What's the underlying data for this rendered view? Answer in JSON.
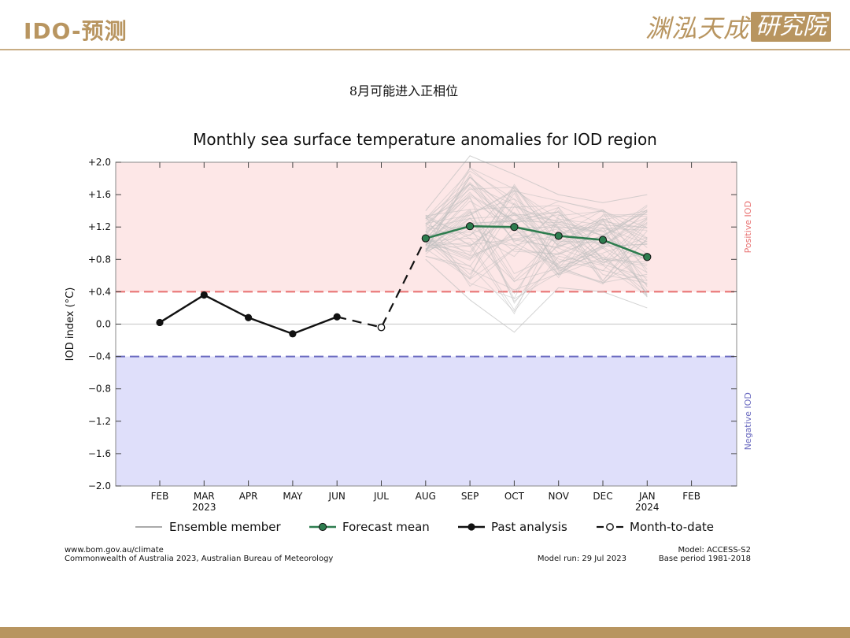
{
  "slide": {
    "title": "IDO-预测",
    "brand_name": "渊泓天成",
    "brand_box": "研究院",
    "subtitle": "8月可能进入正相位"
  },
  "colors": {
    "accent_gold": "#b89560",
    "positive_bg": "#fde7e7",
    "negative_bg": "#dfdffa",
    "positive_line": "#e87070",
    "negative_line": "#6a6ac0",
    "forecast_mean": "#2e7d4f",
    "ensemble": "#c0c0c0"
  },
  "chart_data": {
    "type": "line",
    "title": "Monthly sea surface temperature anomalies for IOD region",
    "ylabel": "IOD index (°C)",
    "ylim": [
      -2.0,
      2.0
    ],
    "yticks": [
      -2.0,
      -1.6,
      -1.2,
      -0.8,
      -0.4,
      0.0,
      0.4,
      0.8,
      1.2,
      1.6,
      2.0
    ],
    "ytick_labels": [
      "−2.0",
      "−1.6",
      "−1.2",
      "−0.8",
      "−0.4",
      "0.0",
      "+0.4",
      "+0.8",
      "+1.2",
      "+1.6",
      "+2.0"
    ],
    "xtick_labels": [
      "FEB",
      "MAR",
      "APR",
      "MAY",
      "JUN",
      "JUL",
      "AUG",
      "SEP",
      "OCT",
      "NOV",
      "DEC",
      "JAN",
      "FEB"
    ],
    "xtick_years": [
      "",
      "2023",
      "",
      "",
      "",
      "",
      "",
      "",
      "",
      "",
      "",
      "2024",
      ""
    ],
    "thresholds": {
      "positive": 0.4,
      "negative": -0.4
    },
    "region_labels": {
      "positive": "Positive IOD",
      "negative": "Negative IOD"
    },
    "series": [
      {
        "name": "Past analysis",
        "x": [
          "FEB",
          "MAR",
          "APR",
          "MAY",
          "JUN"
        ],
        "values": [
          0.02,
          0.36,
          0.08,
          -0.12,
          0.09
        ]
      },
      {
        "name": "Month-to-date",
        "x": [
          "JUN",
          "JUL",
          "AUG"
        ],
        "values": [
          0.09,
          -0.04,
          1.06
        ]
      },
      {
        "name": "Forecast mean",
        "x": [
          "AUG",
          "SEP",
          "OCT",
          "NOV",
          "DEC",
          "JAN"
        ],
        "values": [
          1.06,
          1.21,
          1.2,
          1.09,
          1.04,
          0.83
        ]
      }
    ],
    "ensemble_envelope": {
      "x": [
        "AUG",
        "SEP",
        "OCT",
        "NOV",
        "DEC",
        "JAN"
      ],
      "upper": [
        1.4,
        2.08,
        1.85,
        1.6,
        1.5,
        1.6
      ],
      "lower": [
        0.8,
        0.3,
        -0.1,
        0.45,
        0.4,
        0.2
      ]
    },
    "legend": [
      {
        "label": "Ensemble member",
        "style": "ensemble"
      },
      {
        "label": "Forecast mean",
        "style": "mean"
      },
      {
        "label": "Past analysis",
        "style": "past"
      },
      {
        "label": "Month-to-date",
        "style": "mtd"
      }
    ],
    "legend_position": "bottom",
    "grid": false
  },
  "footer": {
    "source_url": "www.bom.gov.au/climate",
    "copyright": "Commonwealth of Australia 2023, Australian Bureau of Meteorology",
    "model_run": "Model run: 29 Jul 2023",
    "model": "Model: ACCESS-S2",
    "base_period": "Base period 1981-2018"
  }
}
